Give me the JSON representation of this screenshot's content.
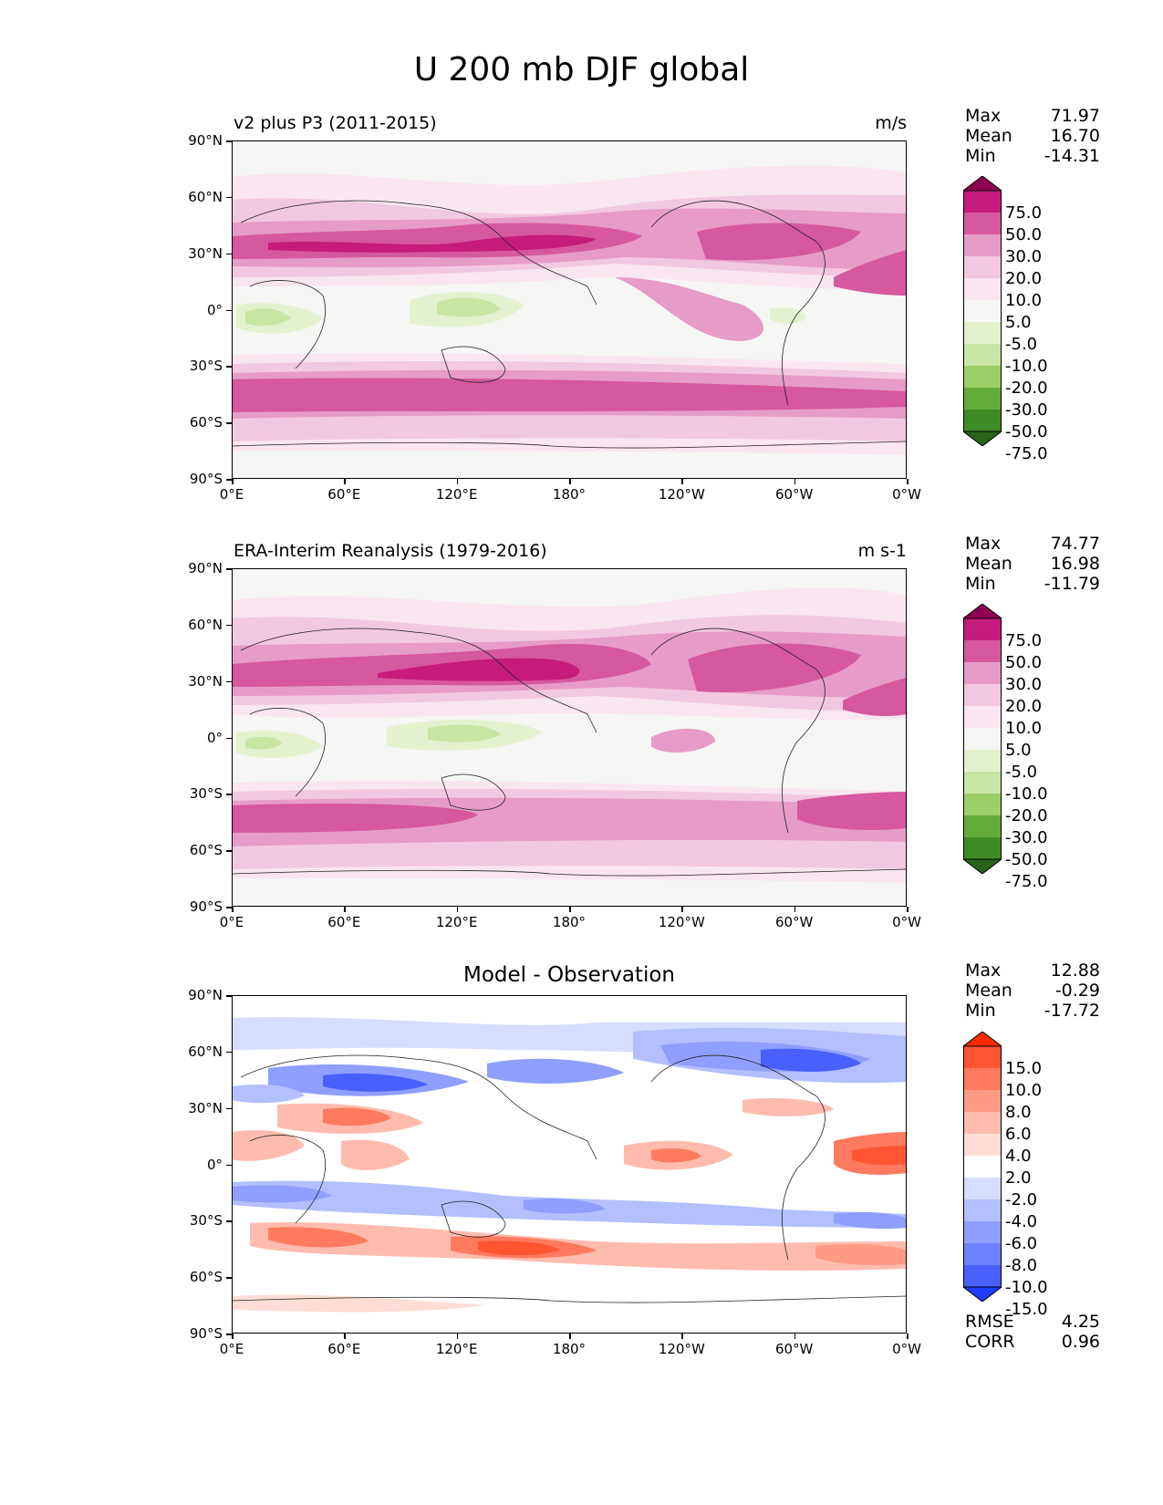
{
  "figure_title": "U 200 mb DJF global",
  "axes": {
    "lat_labels": [
      "90°N",
      "60°N",
      "30°N",
      "0°",
      "30°S",
      "60°S",
      "90°S"
    ],
    "lon_labels": [
      "0°E",
      "60°E",
      "120°E",
      "180°",
      "120°W",
      "60°W",
      "0°W"
    ]
  },
  "panels": [
    {
      "title": "v2 plus P3 (2011-2015)",
      "units": "m/s",
      "stats": [
        {
          "k": "Max",
          "v": "71.97"
        },
        {
          "k": "Mean",
          "v": "16.70"
        },
        {
          "k": "Min",
          "v": "-14.31"
        }
      ],
      "colorbar": {
        "labels": [
          "75.0",
          "50.0",
          "30.0",
          "20.0",
          "10.0",
          "5.0",
          "-5.0",
          "-10.0",
          "-20.0",
          "-30.0",
          "-50.0",
          "-75.0"
        ],
        "colors": [
          "#8e0152",
          "#c51b7d",
          "#d6589f",
          "#e69cc6",
          "#f2c8e0",
          "#fae6f0",
          "#f6f6f5",
          "#e4f1cf",
          "#c8e5a3",
          "#9bcf68",
          "#65ab3a",
          "#3f8b25",
          "#276419"
        ]
      }
    },
    {
      "title": "ERA-Interim Reanalysis (1979-2016)",
      "units": "m s-1",
      "stats": [
        {
          "k": "Max",
          "v": "74.77"
        },
        {
          "k": "Mean",
          "v": "16.98"
        },
        {
          "k": "Min",
          "v": "-11.79"
        }
      ],
      "colorbar": {
        "labels": [
          "75.0",
          "50.0",
          "30.0",
          "20.0",
          "10.0",
          "5.0",
          "-5.0",
          "-10.0",
          "-20.0",
          "-30.0",
          "-50.0",
          "-75.0"
        ],
        "colors": [
          "#8e0152",
          "#c51b7d",
          "#d6589f",
          "#e69cc6",
          "#f2c8e0",
          "#fae6f0",
          "#f6f6f5",
          "#e4f1cf",
          "#c8e5a3",
          "#9bcf68",
          "#65ab3a",
          "#3f8b25",
          "#276419"
        ]
      }
    },
    {
      "title": "Model - Observation",
      "units": "",
      "stats": [
        {
          "k": "Max",
          "v": "12.88"
        },
        {
          "k": "Mean",
          "v": "-0.29"
        },
        {
          "k": "Min",
          "v": "-17.72"
        }
      ],
      "extra_stats": [
        {
          "k": "RMSE",
          "v": "4.25"
        },
        {
          "k": "CORR",
          "v": "0.96"
        }
      ],
      "colorbar": {
        "labels": [
          "15.0",
          "10.0",
          "8.0",
          "6.0",
          "4.0",
          "2.0",
          "-2.0",
          "-4.0",
          "-6.0",
          "-8.0",
          "-10.0",
          "-15.0"
        ],
        "colors": [
          "#ff2a00",
          "#ff5533",
          "#ff7a5e",
          "#ff9b85",
          "#ffbcae",
          "#ffdcd5",
          "#ffffff",
          "#d7ddff",
          "#b3bfff",
          "#8f9fff",
          "#6d80ff",
          "#4960ff",
          "#1f3cff"
        ]
      }
    }
  ]
}
